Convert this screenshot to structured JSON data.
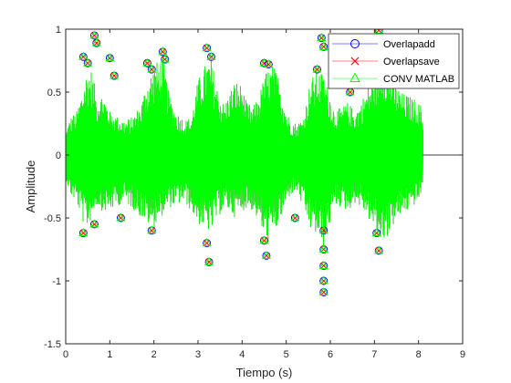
{
  "chart_data": {
    "type": "line",
    "xlabel": "Tiempo (s)",
    "ylabel": "Amplitude",
    "xlim": [
      0,
      9
    ],
    "ylim": [
      -1.5,
      1
    ],
    "xticks": [
      "0",
      "1",
      "2",
      "3",
      "4",
      "5",
      "6",
      "7",
      "8",
      "9"
    ],
    "yticks": [
      "-1.5",
      "-1",
      "-0.5",
      "0",
      "0.5",
      "1"
    ],
    "grid": false,
    "legend_position": "top-right",
    "signal_end": 8.1,
    "series_axis_end": 9,
    "series": [
      {
        "name": "Overlapadd",
        "color": "#0000ff",
        "marker": "circle"
      },
      {
        "name": "Overlapsave",
        "color": "#ff0000",
        "marker": "x"
      },
      {
        "name": "CONV MATLAB",
        "color": "#00ff00",
        "marker": "triangle"
      }
    ],
    "envelope": {
      "x": [
        0.0,
        0.1,
        0.25,
        0.4,
        0.5,
        0.6,
        0.7,
        0.85,
        1.0,
        1.2,
        1.35,
        1.5,
        1.7,
        1.85,
        2.0,
        2.1,
        2.2,
        2.35,
        2.5,
        2.7,
        2.85,
        3.0,
        3.2,
        3.3,
        3.45,
        3.6,
        3.7,
        3.85,
        4.0,
        4.1,
        4.25,
        4.4,
        4.55,
        4.7,
        4.85,
        5.0,
        5.1,
        5.25,
        5.4,
        5.55,
        5.7,
        5.85,
        6.0,
        6.1,
        6.25,
        6.4,
        6.55,
        6.7,
        6.85,
        7.0,
        7.15,
        7.3,
        7.45,
        7.6,
        7.75,
        7.9,
        8.05,
        8.1
      ],
      "upper": [
        0.18,
        0.3,
        0.35,
        0.55,
        0.7,
        0.68,
        0.45,
        0.5,
        0.35,
        0.3,
        0.28,
        0.3,
        0.4,
        0.6,
        0.72,
        0.75,
        0.8,
        0.48,
        0.35,
        0.28,
        0.3,
        0.6,
        0.75,
        0.78,
        0.52,
        0.4,
        0.5,
        0.6,
        0.55,
        0.42,
        0.38,
        0.5,
        0.68,
        0.72,
        0.62,
        0.35,
        0.28,
        0.25,
        0.32,
        0.6,
        0.68,
        0.65,
        0.48,
        0.35,
        0.38,
        0.42,
        0.35,
        0.42,
        0.55,
        0.65,
        0.82,
        0.75,
        0.6,
        0.5,
        0.48,
        0.45,
        0.4,
        0.3
      ],
      "lower": [
        -0.18,
        -0.32,
        -0.38,
        -0.55,
        -0.58,
        -0.5,
        -0.4,
        -0.45,
        -0.45,
        -0.4,
        -0.38,
        -0.42,
        -0.5,
        -0.55,
        -0.58,
        -0.52,
        -0.48,
        -0.42,
        -0.4,
        -0.38,
        -0.45,
        -0.55,
        -0.6,
        -0.62,
        -0.5,
        -0.42,
        -0.45,
        -0.5,
        -0.45,
        -0.42,
        -0.45,
        -0.55,
        -0.72,
        -0.65,
        -0.55,
        -0.38,
        -0.32,
        -0.3,
        -0.45,
        -0.6,
        -0.65,
        -0.75,
        -0.55,
        -0.4,
        -0.42,
        -0.45,
        -0.38,
        -0.42,
        -0.5,
        -0.6,
        -0.7,
        -0.65,
        -0.55,
        -0.48,
        -0.45,
        -0.4,
        -0.35,
        -0.25
      ]
    },
    "peaks": [
      {
        "x": 0.4,
        "y": 0.78
      },
      {
        "x": 0.5,
        "y": 0.73
      },
      {
        "x": 0.65,
        "y": 0.95
      },
      {
        "x": 0.7,
        "y": 0.89
      },
      {
        "x": 1.0,
        "y": 0.77
      },
      {
        "x": 1.1,
        "y": 0.63
      },
      {
        "x": 1.85,
        "y": 0.73
      },
      {
        "x": 1.95,
        "y": 0.68
      },
      {
        "x": 2.2,
        "y": 0.82
      },
      {
        "x": 2.25,
        "y": 0.76
      },
      {
        "x": 3.2,
        "y": 0.85
      },
      {
        "x": 3.3,
        "y": 0.78
      },
      {
        "x": 4.5,
        "y": 0.73
      },
      {
        "x": 4.6,
        "y": 0.72
      },
      {
        "x": 5.7,
        "y": 0.68
      },
      {
        "x": 5.8,
        "y": 0.93
      },
      {
        "x": 5.85,
        "y": 0.86
      },
      {
        "x": 6.45,
        "y": 0.5
      },
      {
        "x": 7.1,
        "y": 0.99
      },
      {
        "x": 7.15,
        "y": 0.9
      },
      {
        "x": 0.4,
        "y": -0.62
      },
      {
        "x": 0.65,
        "y": -0.55
      },
      {
        "x": 1.25,
        "y": -0.5
      },
      {
        "x": 1.95,
        "y": -0.6
      },
      {
        "x": 3.2,
        "y": -0.7
      },
      {
        "x": 3.25,
        "y": -0.85
      },
      {
        "x": 4.5,
        "y": -0.68
      },
      {
        "x": 4.55,
        "y": -0.8
      },
      {
        "x": 5.2,
        "y": -0.5
      },
      {
        "x": 5.85,
        "y": -0.6
      },
      {
        "x": 5.85,
        "y": -0.75
      },
      {
        "x": 5.85,
        "y": -0.88
      },
      {
        "x": 5.85,
        "y": -1.0
      },
      {
        "x": 5.85,
        "y": -1.09
      },
      {
        "x": 7.05,
        "y": -0.62
      },
      {
        "x": 7.1,
        "y": -0.76
      }
    ]
  }
}
